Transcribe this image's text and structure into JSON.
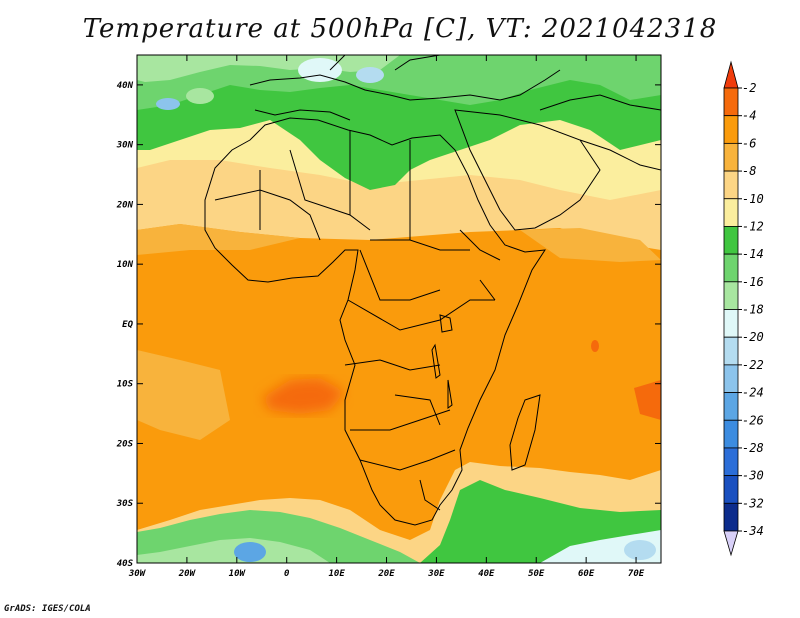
{
  "title": "Temperature at 500hPa [C], VT: 2021042318",
  "credit": "GrADS: IGES/COLA",
  "map": {
    "lon_range": [
      -30,
      75
    ],
    "lat_range": [
      -40,
      45
    ],
    "lat_ticks": [
      "40N",
      "30N",
      "20N",
      "10N",
      "EQ",
      "10S",
      "20S",
      "30S",
      "40S"
    ],
    "lon_ticks": [
      "30W",
      "20W",
      "10W",
      "0",
      "10E",
      "20E",
      "30E",
      "40E",
      "50E",
      "60E",
      "70E"
    ]
  },
  "colorbar": {
    "labels": [
      "-2",
      "-4",
      "-6",
      "-8",
      "-10",
      "-12",
      "-14",
      "-16",
      "-18",
      "-20",
      "-22",
      "-24",
      "-26",
      "-28",
      "-30",
      "-32",
      "-34"
    ],
    "colors": [
      "#f03c0c",
      "#f56a0c",
      "#fa9b0c",
      "#f8b33c",
      "#fcd585",
      "#fbee9e",
      "#40c640",
      "#6ed46e",
      "#a8e6a0",
      "#e0f8f8",
      "#b4dcf0",
      "#8cc4ec",
      "#5ca6e4",
      "#3c8ce0",
      "#2c6ed8",
      "#1a50c0",
      "#0c2c8c",
      "#d8d0f8"
    ]
  }
}
